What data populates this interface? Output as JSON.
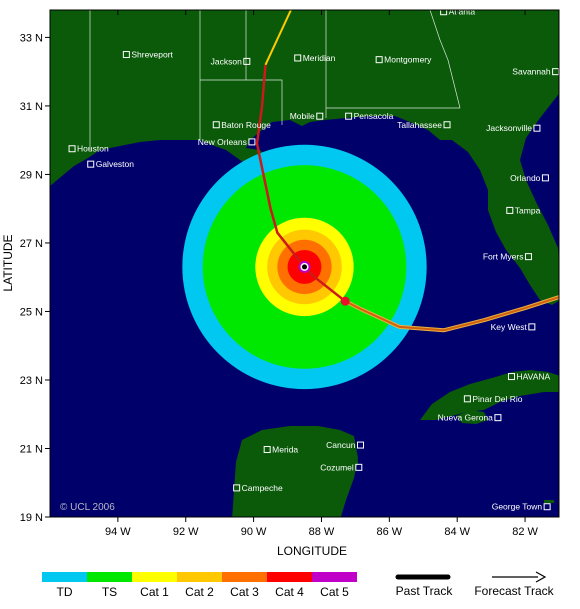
{
  "map": {
    "lon_range": [
      -96.0,
      -81.0
    ],
    "lat_range": [
      19.0,
      33.8
    ],
    "xlabel": "LONGITUDE",
    "ylabel": "LATITUDE",
    "lon_ticks": [
      {
        "value": -94,
        "label": "94 W"
      },
      {
        "value": -92,
        "label": "92 W"
      },
      {
        "value": -90,
        "label": "90 W"
      },
      {
        "value": -88,
        "label": "88 W"
      },
      {
        "value": -86,
        "label": "86 W"
      },
      {
        "value": -84,
        "label": "84 W"
      },
      {
        "value": -82,
        "label": "82 W"
      }
    ],
    "lat_ticks": [
      {
        "value": 19,
        "label": "19 N"
      },
      {
        "value": 21,
        "label": "21 N"
      },
      {
        "value": 23,
        "label": "23 N"
      },
      {
        "value": 25,
        "label": "25 N"
      },
      {
        "value": 27,
        "label": "27 N"
      },
      {
        "value": 29,
        "label": "29 N"
      },
      {
        "value": 31,
        "label": "31 N"
      },
      {
        "value": 33,
        "label": "33 N"
      }
    ],
    "copyright": "© UCL 2006",
    "colors": {
      "ocean": "#00006a",
      "land": "#0a5a0a",
      "border": "#ffffff",
      "TD": "#00c8f0",
      "TS": "#00e800",
      "Cat 1": "#ffff00",
      "Cat 2": "#ffc800",
      "Cat 3": "#ff7000",
      "Cat 4": "#ff0000",
      "Cat 5": "#c000c8",
      "track": "#cc1a1a",
      "forecast": "#ffcc00"
    }
  },
  "cities": [
    {
      "name": "Atlanta",
      "lon": -84.4,
      "lat": 33.75
    },
    {
      "name": "Shreveport",
      "lon": -93.75,
      "lat": 32.5
    },
    {
      "name": "Jackson",
      "lon": -90.2,
      "lat": 32.3
    },
    {
      "name": "Meridian",
      "lon": -88.7,
      "lat": 32.4
    },
    {
      "name": "Montgomery",
      "lon": -86.3,
      "lat": 32.35
    },
    {
      "name": "Savannah",
      "lon": -81.1,
      "lat": 32.0
    },
    {
      "name": "Baton Rouge",
      "lon": -91.1,
      "lat": 30.45
    },
    {
      "name": "Mobile",
      "lon": -88.05,
      "lat": 30.7
    },
    {
      "name": "Pensacola",
      "lon": -87.2,
      "lat": 30.7
    },
    {
      "name": "Tallahassee",
      "lon": -84.3,
      "lat": 30.45
    },
    {
      "name": "Jacksonville",
      "lon": -81.65,
      "lat": 30.35
    },
    {
      "name": "New Orleans",
      "lon": -90.05,
      "lat": 29.95
    },
    {
      "name": "Houston",
      "lon": -95.35,
      "lat": 29.75
    },
    {
      "name": "Galveston",
      "lon": -94.8,
      "lat": 29.3
    },
    {
      "name": "Orlando",
      "lon": -81.4,
      "lat": 28.9
    },
    {
      "name": "Tampa",
      "lon": -82.45,
      "lat": 27.95
    },
    {
      "name": "Fort Myers",
      "lon": -81.9,
      "lat": 26.6
    },
    {
      "name": "Key West",
      "lon": -81.8,
      "lat": 24.55
    },
    {
      "name": "HAVANA",
      "lon": -82.4,
      "lat": 23.1
    },
    {
      "name": "Pinar Del Rio",
      "lon": -83.7,
      "lat": 22.45
    },
    {
      "name": "Nueva Gerona",
      "lon": -82.8,
      "lat": 21.9
    },
    {
      "name": "Merida",
      "lon": -89.6,
      "lat": 20.97
    },
    {
      "name": "Cancun",
      "lon": -86.85,
      "lat": 21.1
    },
    {
      "name": "Cozumel",
      "lon": -86.9,
      "lat": 20.45
    },
    {
      "name": "Campeche",
      "lon": -90.5,
      "lat": 19.85
    },
    {
      "name": "George Town",
      "lon": -81.35,
      "lat": 19.3
    }
  ],
  "storm": {
    "center": {
      "lon": -88.5,
      "lat": 26.3
    },
    "wind_field_deg": [
      {
        "category": "TD",
        "radius": 3.6
      },
      {
        "category": "TS",
        "radius": 3.0
      },
      {
        "category": "Cat 1",
        "radius": 1.45
      },
      {
        "category": "Cat 2",
        "radius": 1.1
      },
      {
        "category": "Cat 3",
        "radius": 0.8
      },
      {
        "category": "Cat 4",
        "radius": 0.5
      },
      {
        "category": "Cat 5",
        "radius": 0.0
      }
    ],
    "past_track": [
      {
        "lon": -80.9,
        "lat": 25.45
      },
      {
        "lon": -82.0,
        "lat": 25.1
      },
      {
        "lon": -83.2,
        "lat": 24.75
      },
      {
        "lon": -84.4,
        "lat": 24.45
      },
      {
        "lon": -85.7,
        "lat": 24.55
      },
      {
        "lon": -86.8,
        "lat": 25.05
      },
      {
        "lon": -87.3,
        "lat": 25.3
      }
    ],
    "forecast_track": [
      {
        "lon": -87.3,
        "lat": 25.3
      },
      {
        "lon": -88.2,
        "lat": 26.0
      },
      {
        "lon": -88.5,
        "lat": 26.3
      },
      {
        "lon": -89.3,
        "lat": 27.3
      },
      {
        "lon": -89.5,
        "lat": 28.0
      },
      {
        "lon": -89.9,
        "lat": 29.9
      },
      {
        "lon": -89.75,
        "lat": 31.0
      },
      {
        "lon": -89.65,
        "lat": 32.2
      },
      {
        "lon": -88.9,
        "lat": 33.8
      }
    ],
    "track_segments_yellow_after_lat": 32.2
  },
  "legend": {
    "categories": [
      {
        "label": "TD",
        "color": "#00c8f0"
      },
      {
        "label": "TS",
        "color": "#00e800"
      },
      {
        "label": "Cat 1",
        "color": "#ffff00"
      },
      {
        "label": "Cat 2",
        "color": "#ffc800"
      },
      {
        "label": "Cat 3",
        "color": "#ff7000"
      },
      {
        "label": "Cat 4",
        "color": "#ff0000"
      },
      {
        "label": "Cat 5",
        "color": "#c000c8"
      }
    ],
    "past_track_label": "Past Track",
    "forecast_track_label": "Forecast Track"
  }
}
